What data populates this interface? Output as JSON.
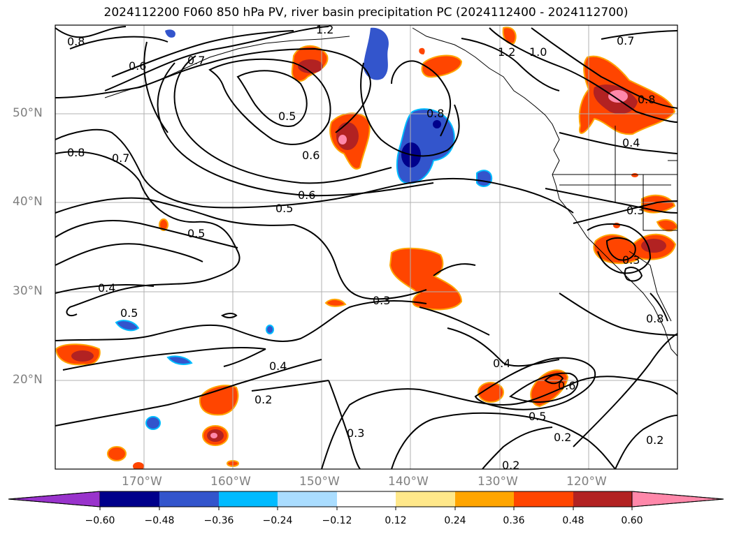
{
  "title": "2024112200 F060 850 hPa PV, river basin precipitation PC (2024112400 - 2024112700)",
  "lat_labels": [
    "50°N",
    "40°N",
    "30°N",
    "20°N"
  ],
  "lon_labels": [
    "170°W",
    "160°W",
    "150°W",
    "140°W",
    "130°W",
    "120°W"
  ],
  "contour_labels": [
    "0.8",
    "1.2",
    "0.6",
    "0.7",
    "0.5",
    "0.6",
    "1.2",
    "1.0",
    "0.7",
    "0.8",
    "0.8",
    "0.7",
    "0.4",
    "0.6",
    "0.5",
    "0.5",
    "0.3",
    "0.4",
    "0.5",
    "0.3",
    "0.4",
    "0.2",
    "0.3",
    "0.4",
    "0.6",
    "0.5",
    "0.2",
    "0.2",
    "0.3",
    "0.2",
    "0.8",
    "0.8"
  ],
  "colorbar": {
    "colors": [
      "#9933cc",
      "#00008b",
      "#3355cc",
      "#00bbff",
      "#aaddff",
      "#ffffff",
      "#ffe88a",
      "#ffa500",
      "#ff4500",
      "#b22222",
      "#ff88aa"
    ],
    "ticks": [
      "−0.60",
      "−0.48",
      "−0.36",
      "−0.24",
      "−0.12",
      "0.12",
      "0.24",
      "0.36",
      "0.48",
      "0.60"
    ]
  }
}
